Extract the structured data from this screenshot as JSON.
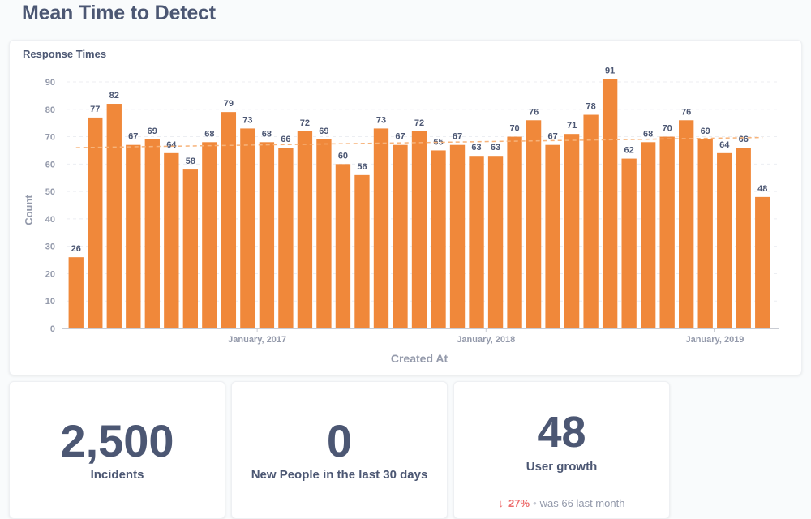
{
  "page": {
    "title": "Mean Time to Detect"
  },
  "chart_card": {
    "title": "Response Times"
  },
  "chart_data": {
    "type": "bar",
    "title": "Response Times",
    "xlabel": "Created At",
    "ylabel": "Count",
    "ylim": [
      0,
      90
    ],
    "yticks": [
      0,
      10,
      20,
      30,
      40,
      50,
      60,
      70,
      80,
      90
    ],
    "values": [
      26,
      77,
      82,
      67,
      69,
      64,
      58,
      68,
      79,
      73,
      68,
      66,
      72,
      69,
      60,
      56,
      73,
      67,
      72,
      65,
      67,
      63,
      63,
      70,
      76,
      67,
      71,
      78,
      91,
      62,
      68,
      70,
      76,
      69,
      64,
      66,
      48
    ],
    "xtick_labels": [
      {
        "label": "January, 2017",
        "index": 9.5
      },
      {
        "label": "January, 2018",
        "index": 21.5
      },
      {
        "label": "January, 2019",
        "index": 33.5
      }
    ],
    "trend_line": {
      "start": 66,
      "end": 69.7,
      "style": "dashed"
    },
    "grid": true,
    "bar_color": "#f0883a",
    "trend_color": "#f7b37a"
  },
  "scalars": [
    {
      "value": "2,500",
      "label": "Incidents"
    },
    {
      "value": "0",
      "label": "New People in the last 30 days"
    },
    {
      "value": "48",
      "label": "User growth",
      "delta": {
        "arrow": "↓",
        "percent": "27%",
        "separator": "•",
        "previous": "was 66",
        "period": "last month"
      }
    }
  ],
  "colors": {
    "text": "#4c5773",
    "axis_text": "#949aab",
    "bar": "#f0883a",
    "negative": "#ed6e6e"
  }
}
